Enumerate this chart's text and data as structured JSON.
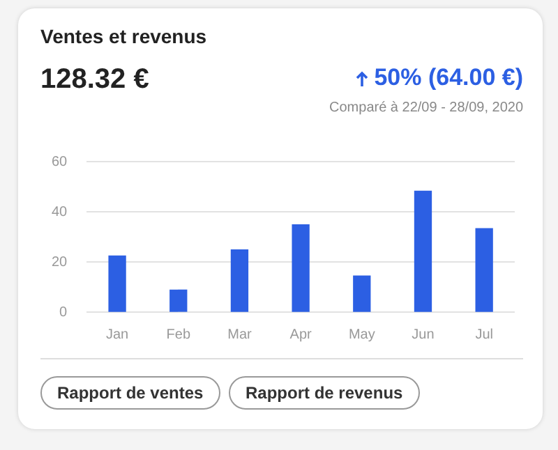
{
  "chart_data": {
    "type": "bar",
    "title": "Ventes et revenus",
    "categories": [
      "Jan",
      "Feb",
      "Mar",
      "Apr",
      "May",
      "Jun",
      "Jul"
    ],
    "values": [
      22.4,
      8.8,
      24.8,
      34.8,
      14.4,
      48.2,
      33.3
    ],
    "color": "#2c5fe3",
    "ylim": [
      0,
      60
    ],
    "yticks": [
      0,
      20,
      40,
      60
    ],
    "grid": "y",
    "legend": false,
    "annotations": [
      "128.32 €",
      "50% (64.00 €)",
      "Comparé à 22/09 - 28/09, 2020",
      "Rapport de ventes",
      "Rapport de revenus"
    ]
  }
}
